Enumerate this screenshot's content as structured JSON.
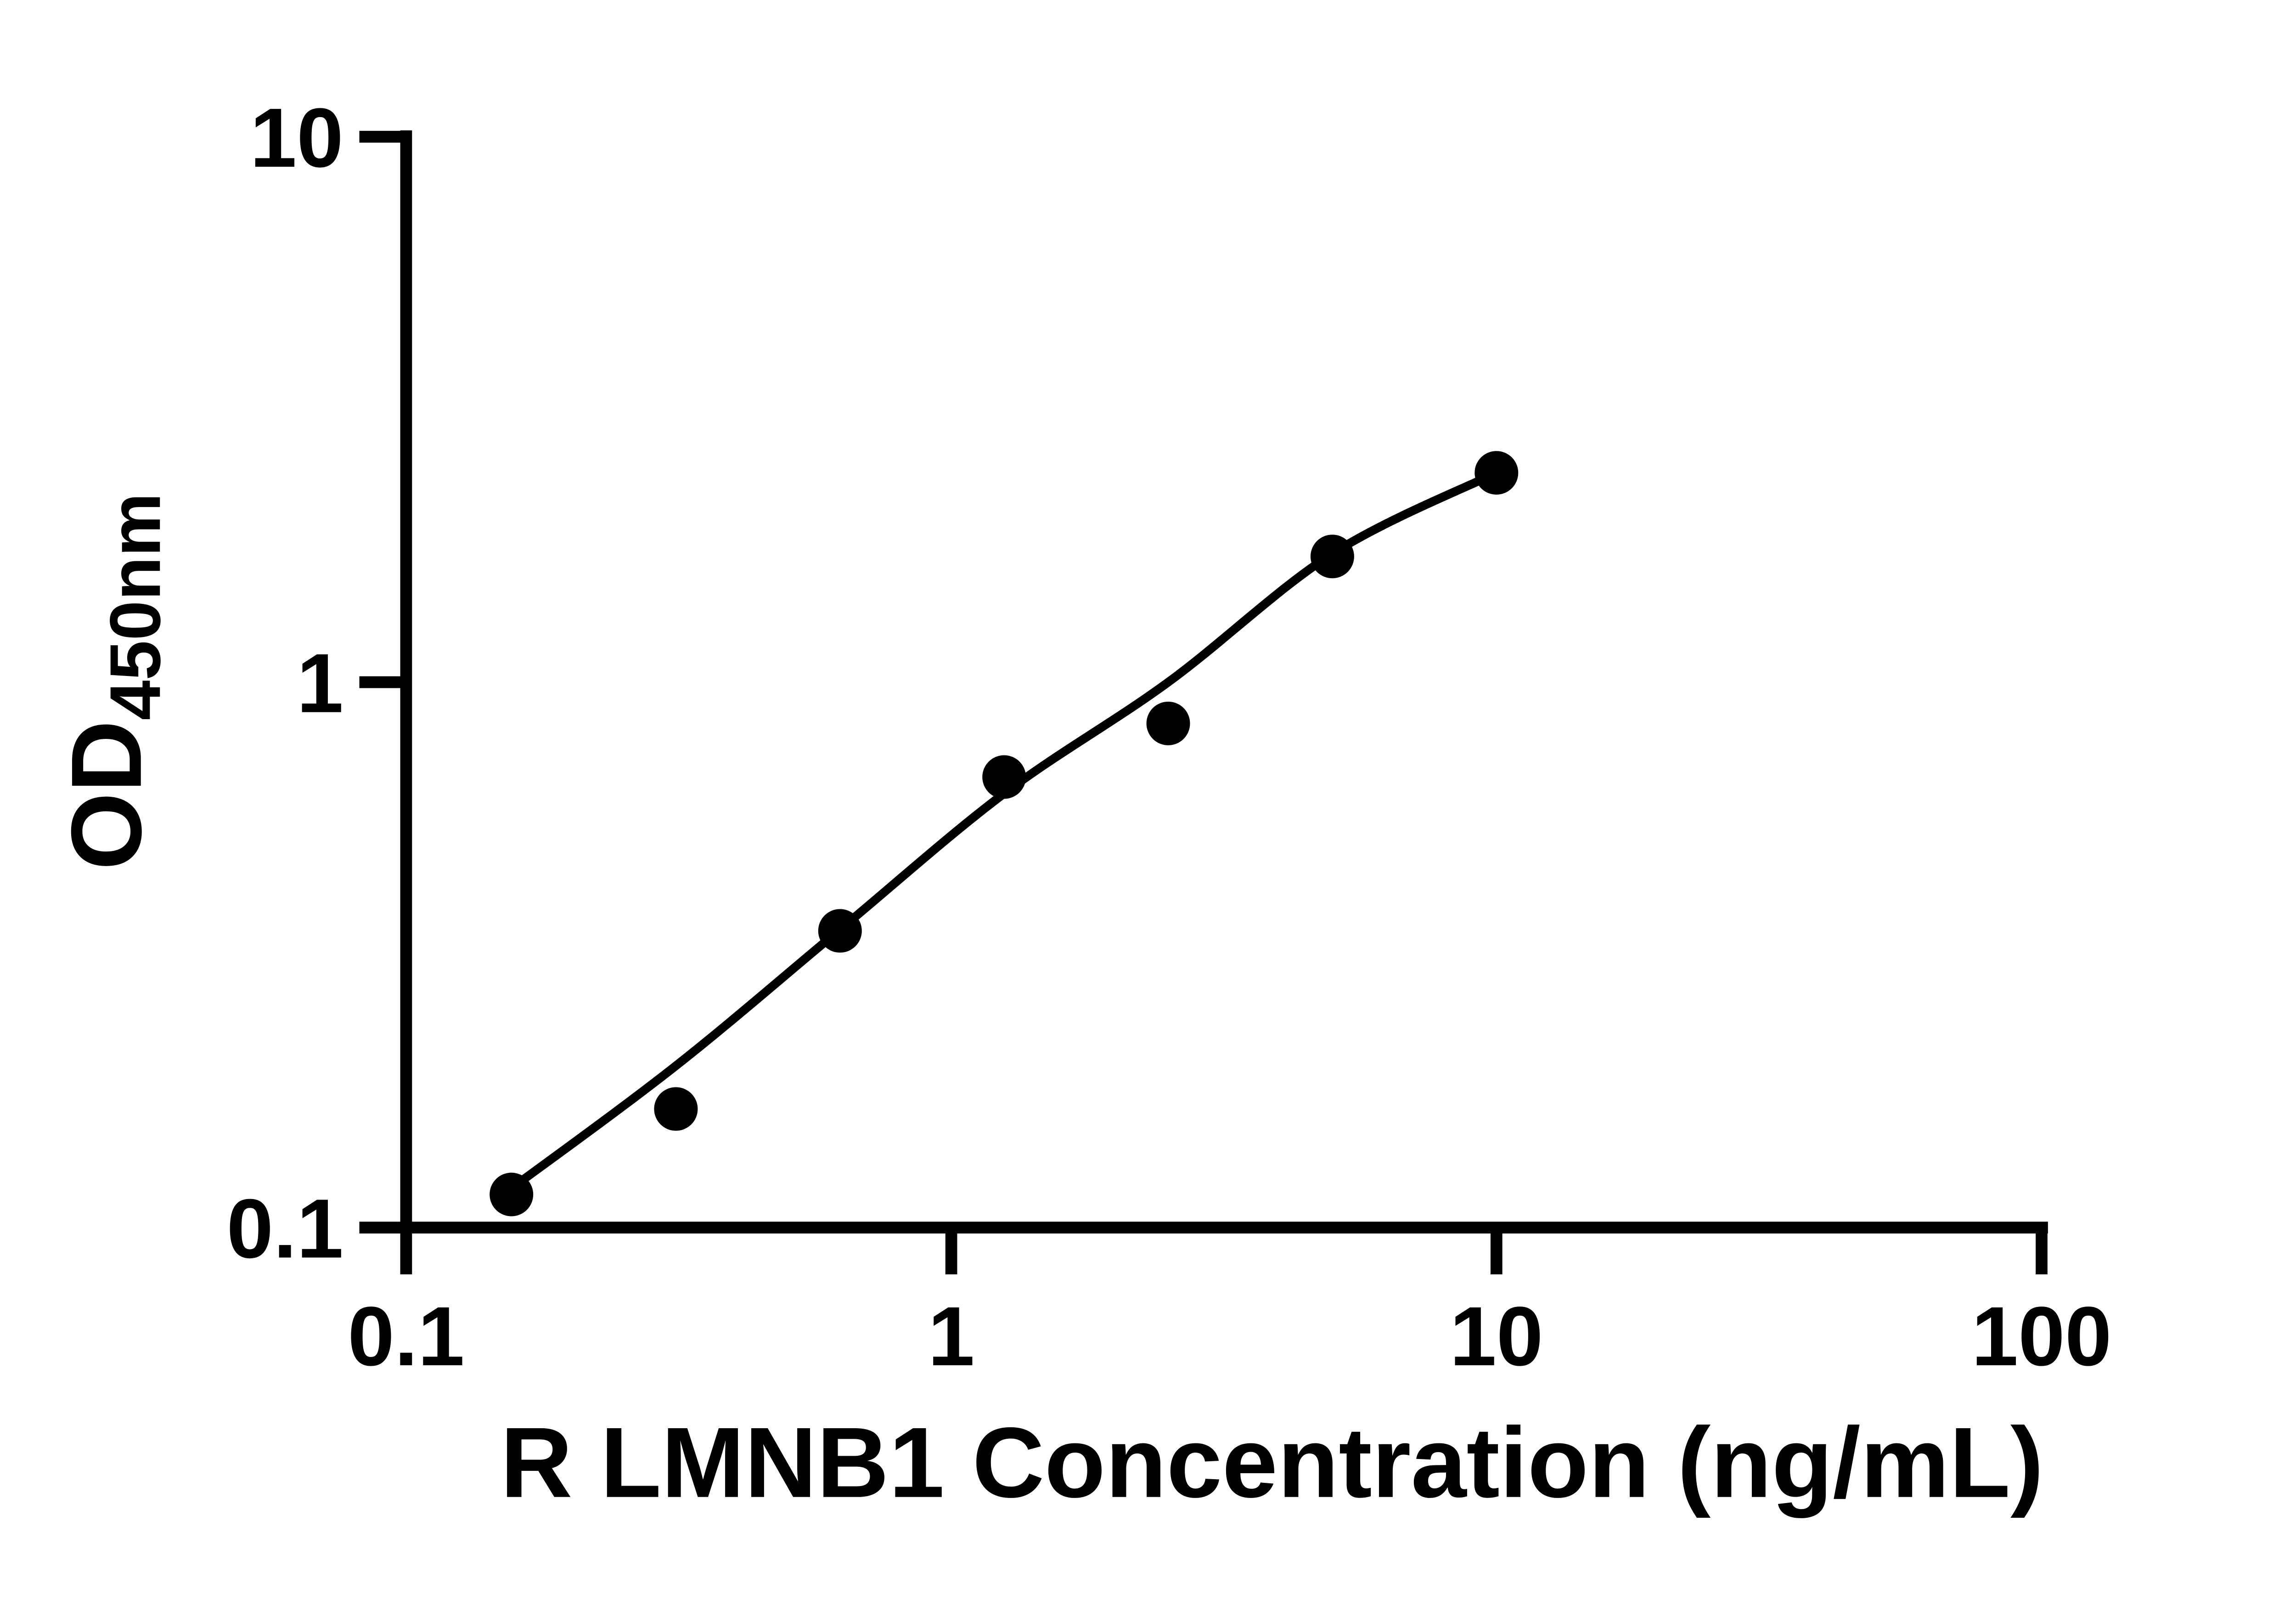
{
  "figure": {
    "background_color": "#ffffff",
    "ink_color": "#000000"
  },
  "chart_data": {
    "type": "scatter",
    "title": "",
    "xlabel": "R LMNB1 Concentration (ng/mL)",
    "ylabel_main": "OD",
    "ylabel_sub": "450nm",
    "x_scale": "log",
    "y_scale": "log",
    "xlim": [
      0.1,
      100
    ],
    "ylim": [
      0.1,
      10
    ],
    "x_ticks": [
      0.1,
      1,
      10,
      100
    ],
    "x_tick_labels": [
      "0.1",
      "1",
      "10",
      "100"
    ],
    "y_ticks": [
      0.1,
      1,
      10
    ],
    "y_tick_labels": [
      "0.1",
      "1",
      "10"
    ],
    "grid": false,
    "legend": "none",
    "marker": "filled-circle",
    "series": [
      {
        "name": "standard-curve-points",
        "color": "#000000",
        "points": [
          {
            "x": 0.156,
            "y": 0.115
          },
          {
            "x": 0.3125,
            "y": 0.165
          },
          {
            "x": 0.625,
            "y": 0.35
          },
          {
            "x": 1.25,
            "y": 0.67
          },
          {
            "x": 2.5,
            "y": 0.84
          },
          {
            "x": 5,
            "y": 1.7
          },
          {
            "x": 10,
            "y": 2.42
          }
        ]
      }
    ],
    "fit_curve": {
      "name": "4pl-fit-line",
      "color": "#000000",
      "samples": [
        {
          "x": 0.156,
          "y": 0.118
        },
        {
          "x": 0.3125,
          "y": 0.198
        },
        {
          "x": 0.625,
          "y": 0.352
        },
        {
          "x": 1.25,
          "y": 0.625
        },
        {
          "x": 2.5,
          "y": 1.0
        },
        {
          "x": 5,
          "y": 1.72
        },
        {
          "x": 10,
          "y": 2.42
        }
      ]
    }
  }
}
